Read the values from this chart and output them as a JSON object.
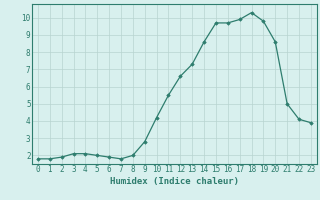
{
  "x": [
    0,
    1,
    2,
    3,
    4,
    5,
    6,
    7,
    8,
    9,
    10,
    11,
    12,
    13,
    14,
    15,
    16,
    17,
    18,
    19,
    20,
    21,
    22,
    23
  ],
  "y": [
    1.8,
    1.8,
    1.9,
    2.1,
    2.1,
    2.0,
    1.9,
    1.8,
    2.0,
    2.8,
    4.2,
    5.5,
    6.6,
    7.3,
    8.6,
    9.7,
    9.7,
    9.9,
    10.3,
    9.8,
    8.6,
    5.0,
    4.1,
    3.9
  ],
  "line_color": "#2e7d6e",
  "marker": "D",
  "marker_size": 1.8,
  "bg_color": "#d8f0ee",
  "grid_color": "#b8d4d0",
  "xlabel": "Humidex (Indice chaleur)",
  "xlim": [
    -0.5,
    23.5
  ],
  "ylim": [
    1.5,
    10.8
  ],
  "xticks": [
    0,
    1,
    2,
    3,
    4,
    5,
    6,
    7,
    8,
    9,
    10,
    11,
    12,
    13,
    14,
    15,
    16,
    17,
    18,
    19,
    20,
    21,
    22,
    23
  ],
  "yticks": [
    2,
    3,
    4,
    5,
    6,
    7,
    8,
    9,
    10
  ],
  "tick_label_fontsize": 5.5,
  "xlabel_fontsize": 6.5
}
